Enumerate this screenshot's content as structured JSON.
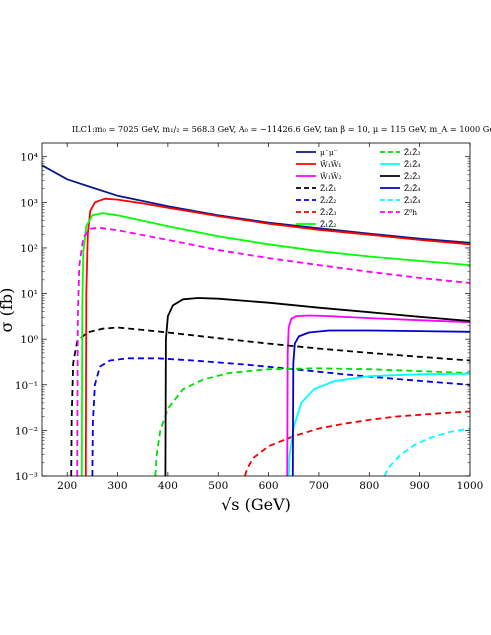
{
  "chart_data": {
    "type": "line",
    "title": "ILC1:m₀ = 7025 GeV, m₁/₂ = 568.3 GeV, A₀ = −11426.6 GeV, tan β = 10, μ = 115 GeV, m_A = 1000 GeV",
    "xlabel": "√s (GeV)",
    "ylabel": "σ (fb)",
    "xscale": "linear",
    "yscale": "log",
    "xlim": [
      150,
      1000
    ],
    "ylim": [
      0.001,
      20000
    ],
    "xticks": [
      "200",
      "300",
      "400",
      "500",
      "600",
      "700",
      "800",
      "900",
      "1000"
    ],
    "yticks": [
      "10⁻³",
      "10⁻²",
      "10⁻¹",
      "10⁰",
      "10¹",
      "10²",
      "10³",
      "10⁴"
    ],
    "grid": false,
    "legend_position": "top-right",
    "series": [
      {
        "name": "μ⁻μ⁻",
        "color": "#0a1a8c",
        "dash": "solid",
        "x": [
          150,
          200,
          250,
          300,
          400,
          500,
          600,
          700,
          800,
          900,
          1000
        ],
        "y": [
          6500,
          3200,
          2100,
          1400,
          820,
          520,
          360,
          270,
          205,
          160,
          130
        ]
      },
      {
        "name": "W̃₁W̃₁",
        "color": "#ff0000",
        "dash": "solid",
        "x": [
          237,
          238,
          241,
          246,
          255,
          275,
          300,
          350,
          400,
          500,
          600,
          700,
          800,
          900,
          1000
        ],
        "y": [
          0.001,
          10,
          200,
          650,
          1000,
          1200,
          1150,
          950,
          760,
          500,
          340,
          250,
          195,
          150,
          120
        ]
      },
      {
        "name": "W̃₁W̃₂",
        "color": "#ff00ff",
        "dash": "solid",
        "x": [
          637,
          638,
          640,
          645,
          655,
          680,
          720,
          800,
          900,
          1000
        ],
        "y": [
          0.001,
          0.5,
          1.8,
          2.8,
          3.2,
          3.3,
          3.2,
          2.9,
          2.6,
          2.35
        ]
      },
      {
        "name": "Z̃₁Z̃₁",
        "color": "#000000",
        "dash": "dashed",
        "x": [
          208,
          209,
          212,
          220,
          240,
          270,
          300,
          350,
          400,
          500,
          600,
          700,
          800,
          900,
          1000
        ],
        "y": [
          0.001,
          0.02,
          0.3,
          0.9,
          1.4,
          1.7,
          1.8,
          1.6,
          1.4,
          1.05,
          0.8,
          0.62,
          0.5,
          0.41,
          0.34
        ]
      },
      {
        "name": "Z̃₂Z̃₂",
        "color": "#0000ee",
        "dash": "dashed",
        "x": [
          250,
          251,
          255,
          265,
          285,
          320,
          380,
          450,
          550,
          650,
          750,
          850,
          950,
          1000
        ],
        "y": [
          0.001,
          0.015,
          0.1,
          0.25,
          0.34,
          0.38,
          0.38,
          0.34,
          0.28,
          0.22,
          0.17,
          0.135,
          0.11,
          0.1
        ]
      },
      {
        "name": "Z̃₂Z̃₃",
        "color": "#ee0000",
        "dash": "dashed",
        "x": [
          553,
          558,
          570,
          600,
          650,
          700,
          750,
          800,
          850,
          900,
          950,
          1000
        ],
        "y": [
          0.001,
          0.0015,
          0.0025,
          0.0045,
          0.0075,
          0.011,
          0.014,
          0.017,
          0.02,
          0.022,
          0.024,
          0.026
        ]
      },
      {
        "name": "Z̃₁Z̃₂",
        "color": "#00ff00",
        "dash": "solid",
        "x": [
          229,
          230,
          232,
          238,
          250,
          270,
          300,
          400,
          500,
          600,
          700,
          800,
          900,
          1000
        ],
        "y": [
          0.001,
          5,
          80,
          300,
          520,
          580,
          520,
          300,
          180,
          120,
          85,
          65,
          52,
          42
        ]
      },
      {
        "name": "Z̃₁Z̃₃",
        "color": "#00dd00",
        "dash": "dashed",
        "x": [
          375,
          378,
          385,
          400,
          430,
          470,
          520,
          600,
          700,
          800,
          900,
          1000
        ],
        "y": [
          0.001,
          0.003,
          0.01,
          0.03,
          0.08,
          0.13,
          0.18,
          0.22,
          0.23,
          0.22,
          0.2,
          0.18
        ]
      },
      {
        "name": "Z̃₁Z̃₄",
        "color": "#00ffff",
        "dash": "solid",
        "x": [
          640,
          642,
          650,
          665,
          690,
          730,
          800,
          900,
          1000
        ],
        "y": [
          0.001,
          0.003,
          0.012,
          0.04,
          0.08,
          0.12,
          0.155,
          0.17,
          0.175
        ]
      },
      {
        "name": "Z̃₂Z̃₃",
        "color": "#000000",
        "dash": "solid",
        "x": [
          395,
          396,
          400,
          410,
          430,
          460,
          500,
          600,
          700,
          800,
          900,
          1000
        ],
        "y": [
          0.001,
          1,
          3.2,
          5.5,
          7.5,
          8,
          7.7,
          6.3,
          4.9,
          3.9,
          3.1,
          2.5
        ]
      },
      {
        "name": "Z̃₂Z̃₄",
        "color": "#0000cc",
        "dash": "solid",
        "x": [
          648,
          649,
          652,
          660,
          680,
          720,
          800,
          900,
          1000
        ],
        "y": [
          0.001,
          0.3,
          0.8,
          1.15,
          1.4,
          1.55,
          1.55,
          1.5,
          1.45
        ]
      },
      {
        "name": "Z̃₃Z̃₄",
        "color": "#00ffff",
        "dash": "dashed",
        "x": [
          830,
          840,
          860,
          890,
          920,
          960,
          1000
        ],
        "y": [
          0.001,
          0.0016,
          0.0028,
          0.0048,
          0.0068,
          0.0092,
          0.011
        ]
      },
      {
        "name": "Z⁰h",
        "color": "#ff00ff",
        "dash": "dashed",
        "x": [
          220,
          221,
          224,
          232,
          245,
          260,
          300,
          400,
          500,
          600,
          700,
          800,
          900,
          1000
        ],
        "y": [
          0.001,
          3,
          40,
          170,
          260,
          280,
          245,
          150,
          90,
          60,
          42,
          30,
          22,
          17
        ]
      }
    ]
  }
}
